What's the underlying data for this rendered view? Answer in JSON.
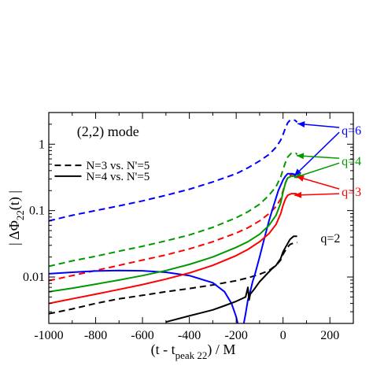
{
  "chart_data": {
    "type": "line",
    "scale": "log",
    "title": "",
    "annotation": "(2,2) mode",
    "xlim": [
      -1000,
      300
    ],
    "ylim": [
      0.002,
      3
    ],
    "xticks": [
      -1000,
      -800,
      -600,
      -400,
      -200,
      0,
      200
    ],
    "xtick_labels": [
      "-1000",
      "-800",
      "-600",
      "-400",
      "-200",
      "0",
      "200"
    ],
    "yticks": [
      0.01,
      0.1,
      1
    ],
    "ytick_labels": [
      "0.01",
      "0.1",
      "1"
    ],
    "xlabel": {
      "pre": "(t  - t",
      "sub": "peak 22",
      "post": ") / M"
    },
    "ylabel": {
      "pre": "| ΔΦ",
      "sub": "22",
      "post": "(t) |"
    },
    "legend": {
      "placement": "upper-left",
      "entries": [
        {
          "label": "N=3 vs. N'=5",
          "style": "dashed"
        },
        {
          "label": "N=4 vs. N'=5",
          "style": "solid"
        }
      ]
    },
    "series": [
      {
        "q": "q=6",
        "color": "#0000ff",
        "style": "dashed",
        "points": [
          [
            -1000,
            0.07
          ],
          [
            -900,
            0.085
          ],
          [
            -800,
            0.1
          ],
          [
            -700,
            0.118
          ],
          [
            -600,
            0.14
          ],
          [
            -500,
            0.17
          ],
          [
            -400,
            0.21
          ],
          [
            -300,
            0.27
          ],
          [
            -200,
            0.36
          ],
          [
            -150,
            0.44
          ],
          [
            -100,
            0.56
          ],
          [
            -60,
            0.7
          ],
          [
            -30,
            0.9
          ],
          [
            -10,
            1.15
          ],
          [
            0,
            1.4
          ],
          [
            10,
            1.75
          ],
          [
            20,
            2.1
          ],
          [
            30,
            2.3
          ],
          [
            50,
            2.3
          ],
          [
            60,
            2.15
          ]
        ]
      },
      {
        "q": "q=4",
        "color": "#009900",
        "style": "dashed",
        "points": [
          [
            -1000,
            0.0145
          ],
          [
            -900,
            0.0175
          ],
          [
            -800,
            0.0205
          ],
          [
            -700,
            0.0245
          ],
          [
            -600,
            0.029
          ],
          [
            -500,
            0.035
          ],
          [
            -400,
            0.043
          ],
          [
            -300,
            0.056
          ],
          [
            -200,
            0.078
          ],
          [
            -150,
            0.096
          ],
          [
            -100,
            0.125
          ],
          [
            -60,
            0.17
          ],
          [
            -30,
            0.23
          ],
          [
            -10,
            0.32
          ],
          [
            0,
            0.42
          ],
          [
            10,
            0.53
          ],
          [
            20,
            0.64
          ],
          [
            35,
            0.73
          ],
          [
            55,
            0.73
          ],
          [
            60,
            0.7
          ]
        ]
      },
      {
        "q": "q=3",
        "color": "#ff0000",
        "style": "dashed",
        "points": [
          [
            -1000,
            0.0088
          ],
          [
            -900,
            0.0105
          ],
          [
            -800,
            0.0125
          ],
          [
            -700,
            0.015
          ],
          [
            -600,
            0.018
          ],
          [
            -500,
            0.0215
          ],
          [
            -400,
            0.0265
          ],
          [
            -300,
            0.034
          ],
          [
            -200,
            0.046
          ],
          [
            -150,
            0.055
          ],
          [
            -100,
            0.07
          ],
          [
            -60,
            0.09
          ],
          [
            -30,
            0.115
          ],
          [
            -10,
            0.15
          ],
          [
            0,
            0.2
          ],
          [
            10,
            0.26
          ],
          [
            20,
            0.32
          ],
          [
            35,
            0.35
          ],
          [
            55,
            0.35
          ],
          [
            60,
            0.34
          ]
        ]
      },
      {
        "q": "q=2",
        "color": "#000000",
        "style": "dashed",
        "points": [
          [
            -1000,
            0.0028
          ],
          [
            -900,
            0.0033
          ],
          [
            -800,
            0.004
          ],
          [
            -700,
            0.0047
          ],
          [
            -600,
            0.0053
          ],
          [
            -500,
            0.006
          ],
          [
            -400,
            0.0067
          ],
          [
            -300,
            0.0076
          ],
          [
            -200,
            0.0088
          ],
          [
            -150,
            0.0097
          ],
          [
            -100,
            0.011
          ],
          [
            -60,
            0.0125
          ],
          [
            -30,
            0.015
          ],
          [
            -10,
            0.018
          ],
          [
            0,
            0.022
          ],
          [
            15,
            0.027
          ],
          [
            30,
            0.031
          ],
          [
            50,
            0.033
          ],
          [
            60,
            0.033
          ]
        ]
      },
      {
        "q": "q=6",
        "color": "#0000ff",
        "style": "solid",
        "points": [
          [
            -1000,
            0.0112
          ],
          [
            -900,
            0.0118
          ],
          [
            -800,
            0.0123
          ],
          [
            -700,
            0.0125
          ],
          [
            -600,
            0.0124
          ],
          [
            -500,
            0.0118
          ],
          [
            -400,
            0.0105
          ],
          [
            -300,
            0.0082
          ],
          [
            -250,
            0.006
          ],
          [
            -220,
            0.004
          ],
          [
            -200,
            0.0025
          ],
          [
            -190,
            0.0018
          ],
          [
            -180,
            0.0012
          ],
          [
            -170,
            0.0018
          ],
          [
            -160,
            0.0028
          ],
          [
            -150,
            0.0045
          ],
          [
            -140,
            0.006
          ],
          [
            -130,
            0.0085
          ],
          [
            -120,
            0.011
          ],
          [
            -100,
            0.02
          ],
          [
            -80,
            0.038
          ],
          [
            -60,
            0.07
          ],
          [
            -40,
            0.12
          ],
          [
            -20,
            0.2
          ],
          [
            0,
            0.29
          ],
          [
            10,
            0.33
          ],
          [
            20,
            0.36
          ],
          [
            40,
            0.36
          ],
          [
            50,
            0.35
          ]
        ]
      },
      {
        "q": "q=4",
        "color": "#009900",
        "style": "solid",
        "points": [
          [
            -1000,
            0.006
          ],
          [
            -900,
            0.0068
          ],
          [
            -800,
            0.0078
          ],
          [
            -700,
            0.009
          ],
          [
            -600,
            0.0105
          ],
          [
            -500,
            0.0125
          ],
          [
            -400,
            0.0155
          ],
          [
            -300,
            0.02
          ],
          [
            -200,
            0.028
          ],
          [
            -150,
            0.034
          ],
          [
            -100,
            0.044
          ],
          [
            -60,
            0.06
          ],
          [
            -30,
            0.085
          ],
          [
            -10,
            0.13
          ],
          [
            0,
            0.19
          ],
          [
            10,
            0.26
          ],
          [
            20,
            0.31
          ],
          [
            35,
            0.33
          ],
          [
            55,
            0.33
          ],
          [
            60,
            0.31
          ]
        ]
      },
      {
        "q": "q=3",
        "color": "#ff0000",
        "style": "solid",
        "points": [
          [
            -1000,
            0.004
          ],
          [
            -900,
            0.0047
          ],
          [
            -800,
            0.0055
          ],
          [
            -700,
            0.0065
          ],
          [
            -600,
            0.0077
          ],
          [
            -500,
            0.0093
          ],
          [
            -400,
            0.0115
          ],
          [
            -300,
            0.015
          ],
          [
            -200,
            0.021
          ],
          [
            -150,
            0.026
          ],
          [
            -100,
            0.034
          ],
          [
            -60,
            0.045
          ],
          [
            -30,
            0.062
          ],
          [
            -10,
            0.09
          ],
          [
            0,
            0.12
          ],
          [
            10,
            0.15
          ],
          [
            20,
            0.17
          ],
          [
            35,
            0.18
          ],
          [
            55,
            0.18
          ],
          [
            60,
            0.175
          ]
        ]
      },
      {
        "q": "q=2",
        "color": "#000000",
        "style": "solid",
        "points": [
          [
            -500,
            0.0021
          ],
          [
            -400,
            0.0026
          ],
          [
            -300,
            0.0032
          ],
          [
            -250,
            0.0037
          ],
          [
            -200,
            0.0043
          ],
          [
            -160,
            0.005
          ],
          [
            -150,
            0.007
          ],
          [
            -145,
            0.0045
          ],
          [
            -140,
            0.0055
          ],
          [
            -120,
            0.0068
          ],
          [
            -100,
            0.0085
          ],
          [
            -70,
            0.011
          ],
          [
            -50,
            0.013
          ],
          [
            -30,
            0.015
          ],
          [
            -10,
            0.019
          ],
          [
            0,
            0.024
          ],
          [
            15,
            0.03
          ],
          [
            30,
            0.037
          ],
          [
            45,
            0.041
          ],
          [
            60,
            0.041
          ]
        ]
      }
    ],
    "q_labels": [
      {
        "text": "q=6",
        "color": "#0000ff",
        "x": 250,
        "y": 1.6
      },
      {
        "text": "q=4",
        "color": "#009900",
        "x": 250,
        "y": 0.55
      },
      {
        "text": "q=3",
        "color": "#ff0000",
        "x": 250,
        "y": 0.19
      },
      {
        "text": "q=2",
        "color": "#000000",
        "x": 160,
        "y": 0.038
      }
    ]
  }
}
